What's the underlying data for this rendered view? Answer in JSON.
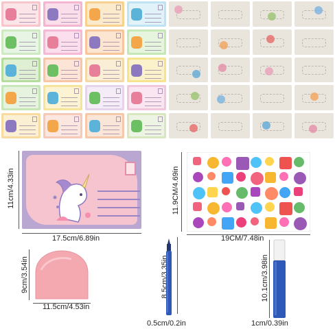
{
  "dimensions": {
    "postcard_width": "17.5cm/6.89in",
    "postcard_height": "11cm/4.33in",
    "sticker_width": "19CM/7.48in",
    "sticker_height": "11.9CM/4.69in",
    "scraper_width": "11.5cm/4.53in",
    "scraper_height": "9cm/3.54in",
    "thin_pen_width": "0.5cm/0.2in",
    "thin_pen_length": "8.5cm/3.35in",
    "thick_pen_width": "1cm/0.39in",
    "thick_pen_length": "10.1cm/3.98in"
  },
  "colors": {
    "postcard_border": "#b9a7d1",
    "postcard_fill": "#f6c4cf",
    "scraper": "#f4a9b1",
    "pen_barrel": "#2f59b8",
    "background": "#ffffff"
  },
  "card_colors": [
    "#f7c6cc",
    "#f4b5d0",
    "#f9d18e",
    "#bfe3f2",
    "#cfe9c3",
    "#f6b9d5",
    "#f9c59a",
    "#c6e8b6",
    "#b6dc9f",
    "#f8c6a4",
    "#f3d9a7",
    "#f7e28f",
    "#c7e7b9",
    "#f7e49b",
    "#e6d5ea",
    "#f1c7de",
    "#f7dba0",
    "#f7c9b8",
    "#f4c8a8",
    "#d9e7c0"
  ],
  "icons": {
    "unicorn": "unicorn-icon",
    "stamp": "stamp-icon",
    "pen": "marker-pen-icon",
    "scraper": "scraper-tool-icon"
  }
}
